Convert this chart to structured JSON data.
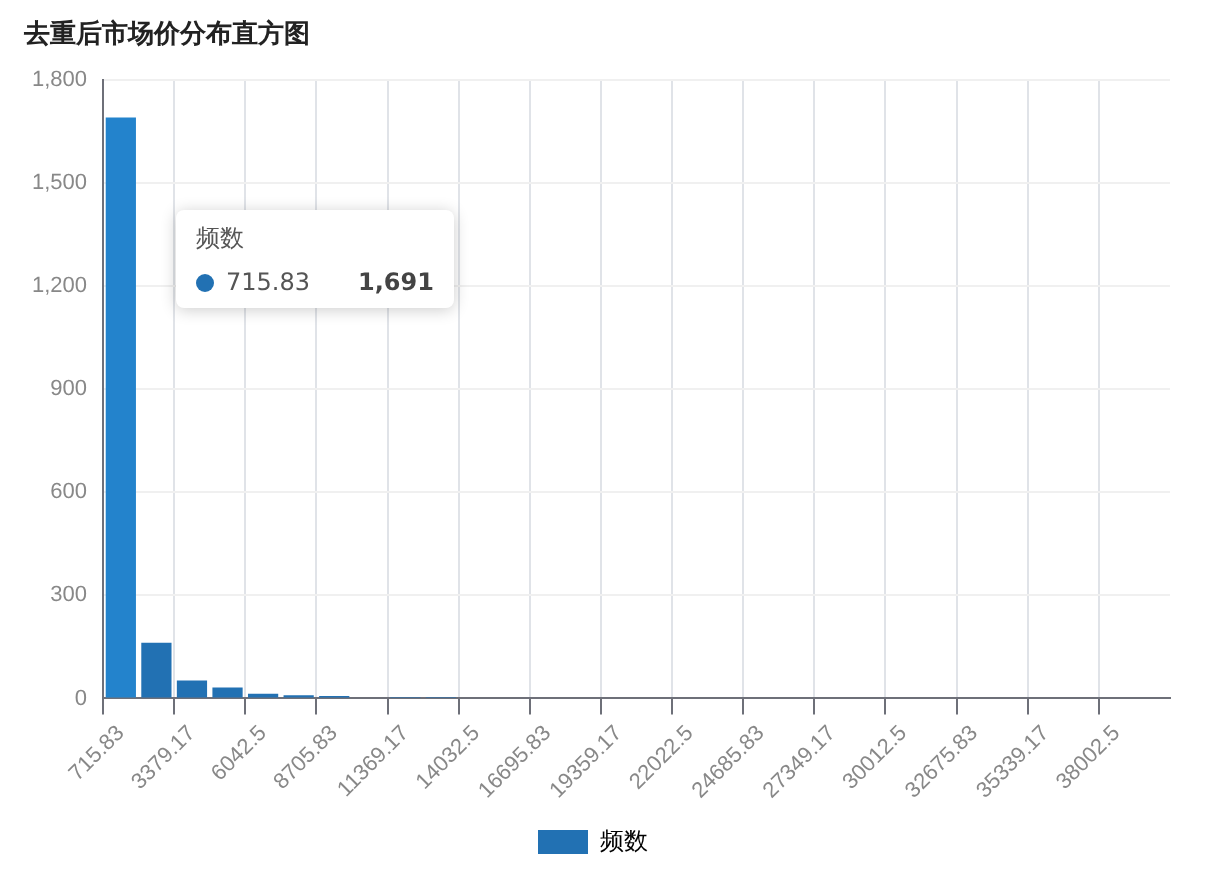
{
  "chart_data": {
    "type": "bar",
    "title": "去重后市场价分布直方图",
    "categories": [
      "715.83",
      null,
      "3379.17",
      null,
      "6042.5",
      null,
      "8705.83",
      null,
      "11369.17",
      null,
      "14032.5",
      null,
      "16695.83",
      null,
      "19359.17",
      null,
      "22022.5",
      null,
      "24685.83",
      null,
      "27349.17",
      null,
      "30012.5",
      null,
      "32675.83",
      null,
      "35339.17",
      null,
      "38002.5",
      null
    ],
    "series": [
      {
        "name": "频数",
        "color": "#2271b3",
        "colors": [
          "#2383cc",
          "#2271b3",
          "#2271b3",
          "#2271b3",
          "#2271b3",
          "#2271b3",
          "#2271b3",
          "#2271b3",
          "#2271b3",
          "#2271b3",
          "#2271b3",
          "#2271b3",
          "#2271b3",
          "#2271b3",
          "#2271b3",
          "#2271b3",
          "#2271b3",
          "#2271b3",
          "#2271b3",
          "#2271b3",
          "#2271b3",
          "#2271b3",
          "#2271b3",
          "#2271b3",
          "#2271b3",
          "#2271b3",
          "#2271b3",
          "#2271b3",
          "#2271b3",
          "#2271b3"
        ],
        "values": [
          1691,
          162,
          52,
          32,
          14,
          9,
          7,
          3,
          1,
          1,
          0,
          0,
          0,
          0,
          0,
          0,
          0,
          0,
          0,
          0,
          0,
          0,
          0,
          0,
          0,
          0,
          0,
          0,
          0,
          0
        ]
      }
    ],
    "ylim": [
      0,
      1800
    ],
    "yticks": [
      0,
      300,
      600,
      900,
      {
        "value": 1200,
        "label": "1,200"
      },
      {
        "value": 1500,
        "label": "1,500"
      },
      {
        "value": 1800,
        "label": "1,800"
      }
    ],
    "grid": true,
    "legend": "bottom",
    "annotations": [
      "频数",
      "715.83",
      "1,691"
    ]
  }
}
